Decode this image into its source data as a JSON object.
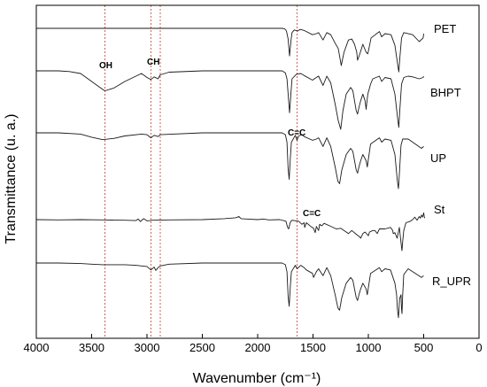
{
  "chart_data": {
    "type": "line",
    "xlabel": "Wavenumber (cm⁻¹)",
    "ylabel": "Transmittance (u. a.)",
    "xlim": [
      4000,
      0
    ],
    "x_ticks": [
      4000,
      3500,
      3000,
      2500,
      2000,
      1500,
      1000,
      500,
      0
    ],
    "grid": false,
    "legend": "labels at right end of each trace",
    "reference_lines": [
      3380,
      2965,
      2880,
      1645
    ],
    "reference_line_color": "#c0392b",
    "annotations": [
      "OH",
      "CH",
      "C=C",
      "C=C"
    ],
    "series": [
      {
        "name": "PET",
        "x": [
          4000,
          3800,
          3600,
          3400,
          3200,
          3050,
          2970,
          2900,
          2500,
          2100,
          1900,
          1780,
          1755,
          1740,
          1725,
          1712,
          1700,
          1690,
          1670,
          1640,
          1615,
          1580,
          1505,
          1470,
          1450,
          1410,
          1375,
          1340,
          1300,
          1272,
          1245,
          1220,
          1180,
          1150,
          1125,
          1105,
          1098,
          1080,
          1050,
          1020,
          1005,
          975,
          900,
          880,
          850,
          795,
          760,
          735,
          725,
          715,
          700,
          680,
          600,
          540,
          505,
          500
        ],
        "y": [
          0.0,
          0.0,
          0.0,
          0.0,
          0.0,
          0.0,
          0.0,
          0.0,
          0.0,
          0.0,
          0.0,
          0.0,
          0.01,
          0.05,
          0.2,
          0.52,
          0.25,
          0.08,
          0.03,
          0.05,
          0.02,
          0.04,
          0.12,
          0.1,
          0.08,
          0.22,
          0.08,
          0.12,
          0.28,
          0.38,
          0.7,
          0.45,
          0.22,
          0.2,
          0.3,
          0.45,
          0.6,
          0.5,
          0.3,
          0.45,
          0.48,
          0.18,
          0.06,
          0.16,
          0.1,
          0.12,
          0.32,
          0.68,
          0.82,
          0.55,
          0.18,
          0.08,
          0.12,
          0.25,
          0.18,
          0.1
        ]
      },
      {
        "name": "BHPT",
        "x": [
          4000,
          3800,
          3700,
          3600,
          3500,
          3400,
          3380,
          3300,
          3200,
          3100,
          3050,
          3000,
          2965,
          2935,
          2900,
          2880,
          2800,
          2500,
          2100,
          1900,
          1780,
          1750,
          1735,
          1720,
          1712,
          1700,
          1690,
          1650,
          1610,
          1580,
          1505,
          1470,
          1450,
          1410,
          1375,
          1340,
          1300,
          1272,
          1250,
          1230,
          1200,
          1160,
          1140,
          1125,
          1110,
          1098,
          1085,
          1070,
          1050,
          1030,
          1020,
          1015,
          1005,
          980,
          960,
          900,
          880,
          850,
          795,
          760,
          735,
          725,
          715,
          700,
          680,
          640,
          600,
          540,
          505,
          500
        ],
        "y": [
          0.0,
          0.0,
          0.01,
          0.04,
          0.16,
          0.28,
          0.3,
          0.26,
          0.16,
          0.08,
          0.04,
          0.1,
          0.13,
          0.09,
          0.12,
          0.06,
          0.02,
          0.0,
          0.0,
          0.0,
          0.0,
          0.03,
          0.12,
          0.45,
          0.63,
          0.35,
          0.12,
          0.05,
          0.04,
          0.07,
          0.14,
          0.1,
          0.08,
          0.22,
          0.08,
          0.18,
          0.5,
          0.75,
          0.88,
          0.6,
          0.35,
          0.25,
          0.3,
          0.45,
          0.6,
          0.65,
          0.55,
          0.45,
          0.35,
          0.45,
          0.58,
          0.5,
          0.35,
          0.2,
          0.12,
          0.08,
          0.16,
          0.1,
          0.12,
          0.35,
          0.72,
          0.85,
          0.58,
          0.2,
          0.1,
          0.08,
          0.09,
          0.12,
          0.1,
          0.08
        ]
      },
      {
        "name": "UP",
        "x": [
          4000,
          3800,
          3600,
          3500,
          3400,
          3300,
          3200,
          3050,
          3000,
          2965,
          2935,
          2900,
          2880,
          2500,
          2100,
          1900,
          1780,
          1750,
          1735,
          1725,
          1715,
          1705,
          1695,
          1660,
          1645,
          1630,
          1600,
          1580,
          1505,
          1470,
          1450,
          1410,
          1375,
          1340,
          1300,
          1275,
          1260,
          1240,
          1200,
          1160,
          1140,
          1125,
          1110,
          1098,
          1085,
          1070,
          1050,
          1020,
          1010,
          980,
          900,
          880,
          850,
          795,
          760,
          738,
          728,
          718,
          705,
          690,
          640,
          600,
          520,
          500
        ],
        "y": [
          0.0,
          0.0,
          0.02,
          0.07,
          0.11,
          0.09,
          0.05,
          0.02,
          0.03,
          0.08,
          0.04,
          0.06,
          0.03,
          0.0,
          0.0,
          0.0,
          0.0,
          0.03,
          0.15,
          0.58,
          0.75,
          0.4,
          0.15,
          0.04,
          0.12,
          0.05,
          0.03,
          0.06,
          0.12,
          0.1,
          0.08,
          0.22,
          0.08,
          0.22,
          0.55,
          0.78,
          0.82,
          0.6,
          0.35,
          0.25,
          0.3,
          0.45,
          0.6,
          0.65,
          0.55,
          0.45,
          0.35,
          0.45,
          0.55,
          0.18,
          0.08,
          0.15,
          0.1,
          0.12,
          0.35,
          0.78,
          0.9,
          0.6,
          0.2,
          0.1,
          0.1,
          0.15,
          0.25,
          0.22
        ]
      },
      {
        "name": "St",
        "x": [
          4000,
          3800,
          3600,
          3400,
          3200,
          3100,
          3080,
          3060,
          3030,
          3000,
          2950,
          2800,
          2500,
          2300,
          2200,
          2170,
          2150,
          2100,
          2000,
          1950,
          1900,
          1800,
          1745,
          1730,
          1720,
          1705,
          1690,
          1650,
          1630,
          1600,
          1580,
          1575,
          1560,
          1520,
          1495,
          1480,
          1470,
          1450,
          1440,
          1420,
          1400,
          1350,
          1290,
          1250,
          1200,
          1180,
          1150,
          1100,
          1080,
          1070,
          1050,
          1030,
          1000,
          990,
          960,
          940,
          920,
          900,
          850,
          800,
          780,
          775,
          760,
          740,
          720,
          700,
          696,
          690,
          680,
          660,
          620,
          600,
          580,
          560,
          540,
          530,
          520,
          510,
          500,
          495,
          490
        ],
        "y": [
          0.0,
          0.01,
          0.0,
          0.01,
          0.02,
          0.03,
          -0.02,
          0.06,
          -0.03,
          0.04,
          0.02,
          0.01,
          0.0,
          -0.03,
          -0.06,
          -0.1,
          -0.03,
          -0.02,
          0.0,
          -0.02,
          0.01,
          0.0,
          0.05,
          0.25,
          0.3,
          0.08,
          0.02,
          0.04,
          0.05,
          0.15,
          0.1,
          0.25,
          0.1,
          0.22,
          0.28,
          0.42,
          0.22,
          0.35,
          0.15,
          0.2,
          0.12,
          0.2,
          0.3,
          0.28,
          0.4,
          0.45,
          0.35,
          0.5,
          0.55,
          0.6,
          0.45,
          0.4,
          0.52,
          0.4,
          0.35,
          0.35,
          0.45,
          0.3,
          0.3,
          0.25,
          0.35,
          0.45,
          0.42,
          0.6,
          0.25,
          0.9,
          1.0,
          0.7,
          0.35,
          0.1,
          0.05,
          0.0,
          -0.08,
          0.02,
          -0.1,
          -0.05,
          -0.15,
          -0.08,
          -0.22,
          -0.1,
          -0.05
        ]
      },
      {
        "name": "R_UPR",
        "x": [
          4000,
          3800,
          3600,
          3500,
          3400,
          3200,
          3100,
          3050,
          3000,
          2965,
          2935,
          2920,
          2900,
          2880,
          2800,
          2500,
          2100,
          1900,
          1780,
          1750,
          1735,
          1725,
          1715,
          1705,
          1695,
          1660,
          1645,
          1610,
          1580,
          1560,
          1505,
          1495,
          1470,
          1450,
          1410,
          1375,
          1340,
          1300,
          1275,
          1260,
          1240,
          1200,
          1160,
          1140,
          1125,
          1110,
          1098,
          1085,
          1070,
          1050,
          1020,
          1010,
          980,
          900,
          880,
          850,
          800,
          760,
          745,
          738,
          728,
          718,
          705,
          700,
          696,
          690,
          680,
          640,
          600,
          520,
          500
        ],
        "y": [
          0.0,
          0.0,
          0.01,
          0.02,
          0.03,
          0.03,
          0.04,
          0.05,
          0.06,
          0.12,
          0.07,
          0.13,
          0.08,
          0.05,
          0.02,
          0.0,
          0.0,
          0.0,
          0.0,
          0.03,
          0.15,
          0.58,
          0.75,
          0.4,
          0.15,
          0.04,
          0.1,
          0.04,
          0.08,
          0.12,
          0.18,
          0.25,
          0.15,
          0.1,
          0.22,
          0.08,
          0.22,
          0.55,
          0.78,
          0.82,
          0.6,
          0.35,
          0.25,
          0.3,
          0.45,
          0.6,
          0.65,
          0.55,
          0.45,
          0.35,
          0.45,
          0.55,
          0.18,
          0.08,
          0.15,
          0.1,
          0.12,
          0.35,
          0.55,
          0.8,
          0.95,
          0.62,
          0.55,
          0.8,
          0.88,
          0.55,
          0.2,
          0.1,
          0.15,
          0.25,
          0.22
        ]
      }
    ]
  }
}
